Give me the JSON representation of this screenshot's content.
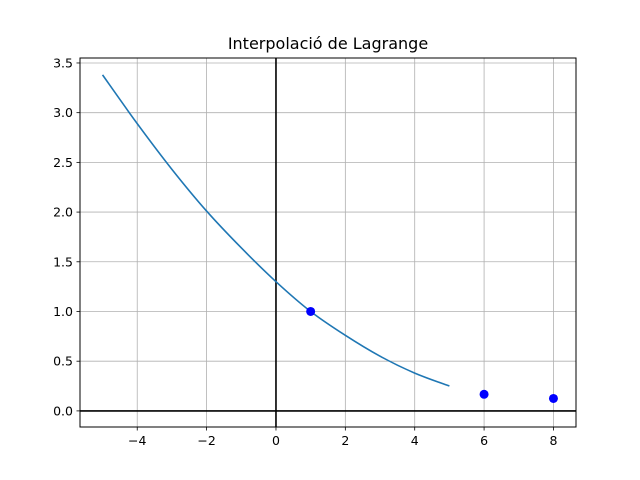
{
  "chart_data": {
    "type": "line",
    "title": "Interpolació de Lagrange",
    "xlabel": "",
    "ylabel": "",
    "xlim": [
      -5.65,
      8.65
    ],
    "ylim": [
      -0.162,
      3.55
    ],
    "grid": true,
    "legend": "none",
    "x_ticks": [
      -4,
      -2,
      0,
      2,
      4,
      6,
      8
    ],
    "x_tick_labels": [
      "−4",
      "−2",
      "0",
      "2",
      "4",
      "6",
      "8"
    ],
    "y_ticks": [
      0.0,
      0.5,
      1.0,
      1.5,
      2.0,
      2.5,
      3.0,
      3.5
    ],
    "y_tick_labels": [
      "0.0",
      "0.5",
      "1.0",
      "1.5",
      "2.0",
      "2.5",
      "3.0",
      "3.5"
    ],
    "axes_lines": {
      "x0": 0,
      "y0": 0
    },
    "series": [
      {
        "kind": "line",
        "color": "#1f77b4",
        "x": [
          -5,
          -4,
          -3,
          -2,
          -1,
          0,
          1,
          2,
          3,
          4,
          5
        ],
        "y": [
          3.38,
          2.89,
          2.43,
          2.01,
          1.64,
          1.3,
          1.0,
          0.76,
          0.55,
          0.38,
          0.25
        ]
      },
      {
        "kind": "scatter",
        "color": "#0000ff",
        "x": [
          1,
          6,
          8
        ],
        "y": [
          1.0,
          0.167,
          0.125
        ]
      }
    ]
  }
}
